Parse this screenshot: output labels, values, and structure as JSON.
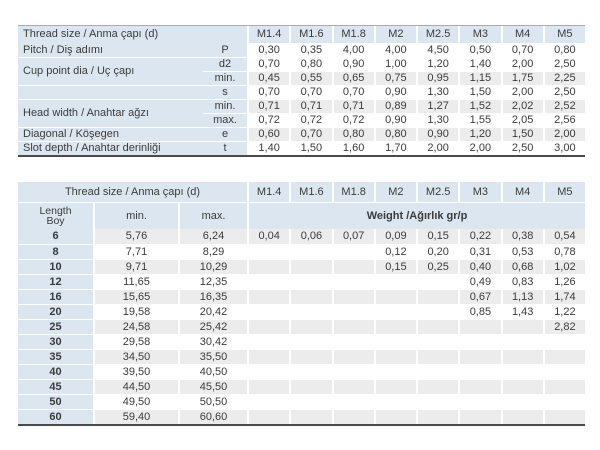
{
  "colors": {
    "header_blue": "#dce6f1",
    "stripe_gray": "#ececec",
    "bottom_border": "#4a4a4a",
    "top_border": "#a6acb4",
    "text": "#3b3b3b"
  },
  "sizes": [
    "M1.4",
    "M1.6",
    "M1.8",
    "M2",
    "M2.5",
    "M3",
    "M4",
    "M5"
  ],
  "table1": {
    "header_label": "Thread size / Anma çapı (d)",
    "stripe_rows": [
      2,
      4,
      6
    ],
    "rows": [
      {
        "label": "Pitch / Diş adımı",
        "rowspan": 1,
        "sub": "P",
        "values": [
          "0,30",
          "0,35",
          "4,00",
          "4,00",
          "4,50",
          "0,50",
          "0,70",
          "0,80"
        ]
      },
      {
        "label": "Cup point dia / Uç çapı",
        "rowspan": 2,
        "sub": "d2",
        "values": [
          "0,70",
          "0,80",
          "0,90",
          "1,00",
          "1,20",
          "1,40",
          "2,00",
          "2,50"
        ]
      },
      {
        "sub": "min.",
        "values": [
          "0,45",
          "0,55",
          "0,65",
          "0,75",
          "0,95",
          "1,15",
          "1,75",
          "2,25"
        ]
      },
      {
        "label": "",
        "rowspan": 1,
        "sub": "s",
        "values": [
          "0,70",
          "0,70",
          "0,70",
          "0,90",
          "1,30",
          "1,50",
          "2,00",
          "2,50"
        ]
      },
      {
        "label": "Head width / Anahtar ağzı",
        "rowspan": 2,
        "sub": "min.",
        "values": [
          "0,71",
          "0,71",
          "0,71",
          "0,89",
          "1,27",
          "1,52",
          "2,02",
          "2,52"
        ]
      },
      {
        "sub": "max.",
        "values": [
          "0,72",
          "0,72",
          "0,72",
          "0,90",
          "1,30",
          "1,55",
          "2,05",
          "2,56"
        ]
      },
      {
        "label": "Diagonal / Köşegen",
        "rowspan": 1,
        "sub": "e",
        "values": [
          "0,60",
          "0,70",
          "0,80",
          "0,80",
          "0,90",
          "1,20",
          "1,50",
          "2,00"
        ]
      },
      {
        "label": "Slot depth / Anahtar derinliği",
        "rowspan": 1,
        "sub": "t",
        "values": [
          "1,40",
          "1,50",
          "1,60",
          "1,70",
          "2,00",
          "2,00",
          "2,50",
          "3,00"
        ]
      }
    ]
  },
  "table2": {
    "header_label": "Thread size / Anma çapı (d)",
    "length_label_1": "Length",
    "length_label_2": "Boy",
    "min_label": "min.",
    "max_label": "max.",
    "weight_label": "Weight /Ağırlık gr/p",
    "rows": [
      {
        "length": "6",
        "min": "5,76",
        "max": "6,24",
        "weights": [
          "0,04",
          "0,06",
          "0,07",
          "0,09",
          "0,15",
          "0,22",
          "0,38",
          "0,54"
        ]
      },
      {
        "length": "8",
        "min": "7,71",
        "max": "8,29",
        "weights": [
          "",
          "",
          "",
          "0,12",
          "0,20",
          "0,31",
          "0,53",
          "0,78"
        ]
      },
      {
        "length": "10",
        "min": "9,71",
        "max": "10,29",
        "weights": [
          "",
          "",
          "",
          "0,15",
          "0,25",
          "0,40",
          "0,68",
          "1,02"
        ]
      },
      {
        "length": "12",
        "min": "11,65",
        "max": "12,35",
        "weights": [
          "",
          "",
          "",
          "",
          "",
          "0,49",
          "0,83",
          "1,26"
        ]
      },
      {
        "length": "16",
        "min": "15,65",
        "max": "16,35",
        "weights": [
          "",
          "",
          "",
          "",
          "",
          "0,67",
          "1,13",
          "1,74"
        ]
      },
      {
        "length": "20",
        "min": "19,58",
        "max": "20,42",
        "weights": [
          "",
          "",
          "",
          "",
          "",
          "0,85",
          "1,43",
          "1,22"
        ]
      },
      {
        "length": "25",
        "min": "24,58",
        "max": "25,42",
        "weights": [
          "",
          "",
          "",
          "",
          "",
          "",
          "",
          "2,82"
        ]
      },
      {
        "length": "30",
        "min": "29,58",
        "max": "30,42",
        "weights": [
          "",
          "",
          "",
          "",
          "",
          "",
          "",
          ""
        ]
      },
      {
        "length": "35",
        "min": "34,50",
        "max": "35,50",
        "weights": [
          "",
          "",
          "",
          "",
          "",
          "",
          "",
          ""
        ]
      },
      {
        "length": "40",
        "min": "39,50",
        "max": "40,50",
        "weights": [
          "",
          "",
          "",
          "",
          "",
          "",
          "",
          ""
        ]
      },
      {
        "length": "45",
        "min": "44,50",
        "max": "45,50",
        "weights": [
          "",
          "",
          "",
          "",
          "",
          "",
          "",
          ""
        ]
      },
      {
        "length": "50",
        "min": "49,50",
        "max": "50,50",
        "weights": [
          "",
          "",
          "",
          "",
          "",
          "",
          "",
          ""
        ]
      },
      {
        "length": "60",
        "min": "59,40",
        "max": "60,60",
        "weights": [
          "",
          "",
          "",
          "",
          "",
          "",
          "",
          ""
        ]
      }
    ]
  }
}
